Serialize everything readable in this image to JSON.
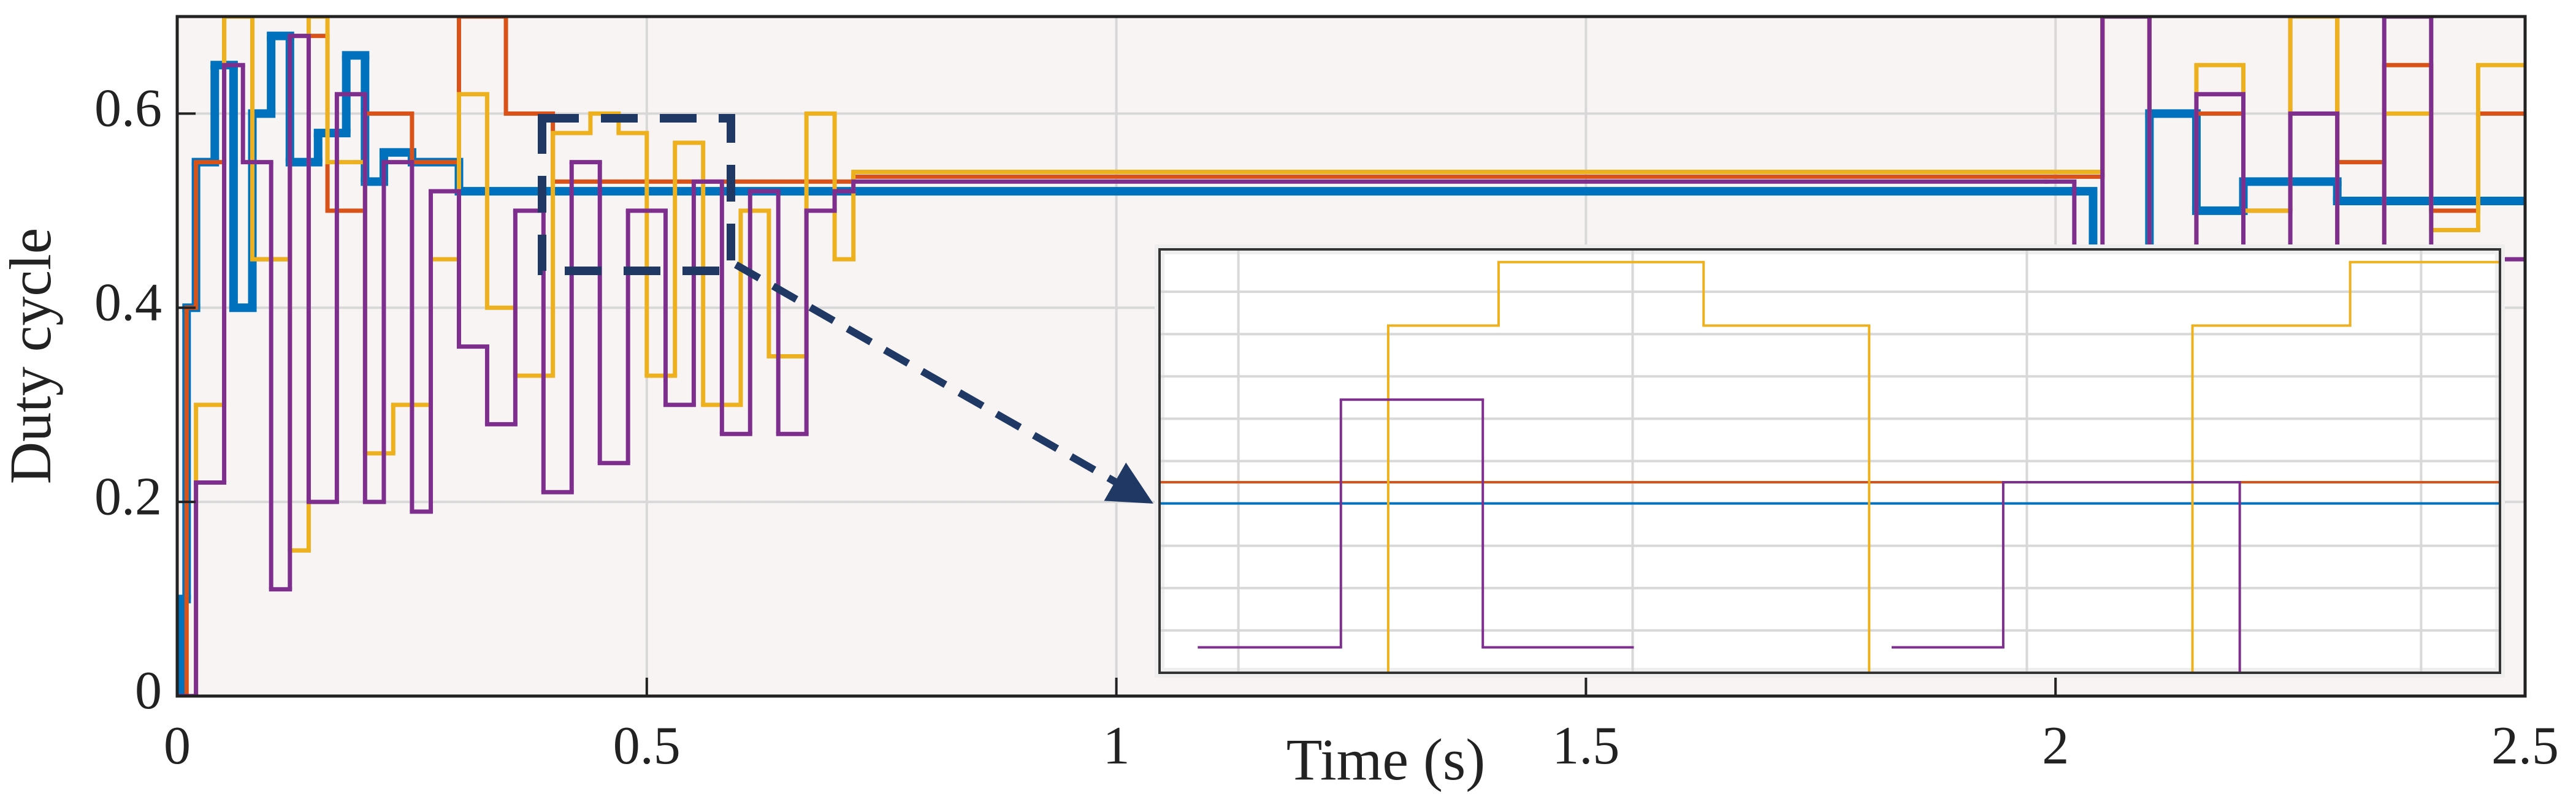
{
  "chart_data": {
    "type": "step",
    "xlabel": "Time (s)",
    "ylabel": "Duty cycle",
    "xlim": [
      0,
      2.5
    ],
    "ylim": [
      0,
      0.7
    ],
    "xticks": [
      0,
      0.5,
      1,
      1.5,
      2,
      2.5
    ],
    "yticks": [
      0,
      0.2,
      0.4,
      0.6
    ],
    "grid": true,
    "series": [
      {
        "color": "#0072bd",
        "x": [
          0,
          0.005,
          0.01,
          0.02,
          0.04,
          0.06,
          0.08,
          0.1,
          0.12,
          0.15,
          0.18,
          0.2,
          0.22,
          0.25,
          0.3,
          2.02,
          2.04,
          2.1,
          2.15,
          2.2,
          2.3,
          2.4,
          2.5
        ],
        "values": [
          0,
          0.1,
          0.4,
          0.55,
          0.65,
          0.4,
          0.6,
          0.68,
          0.55,
          0.58,
          0.66,
          0.53,
          0.56,
          0.55,
          0.52,
          0.52,
          0.45,
          0.6,
          0.5,
          0.53,
          0.51,
          0.51,
          0.51
        ]
      },
      {
        "color": "#d95319",
        "x": [
          0,
          0.01,
          0.02,
          0.05,
          0.08,
          0.12,
          0.16,
          0.2,
          0.25,
          0.3,
          0.35,
          0.4,
          0.72,
          2.0,
          2.05,
          2.1,
          2.15,
          2.2,
          2.25,
          2.3,
          2.35,
          2.4,
          2.45,
          2.5
        ],
        "values": [
          0,
          0.4,
          0.55,
          0.7,
          0.45,
          0.68,
          0.5,
          0.6,
          0.55,
          0.7,
          0.6,
          0.53,
          0.535,
          0.535,
          0.7,
          0.45,
          0.6,
          0.5,
          0.7,
          0.55,
          0.65,
          0.5,
          0.6,
          0.6
        ]
      },
      {
        "color": "#edb120",
        "x": [
          0,
          0.02,
          0.05,
          0.08,
          0.12,
          0.14,
          0.16,
          0.2,
          0.23,
          0.27,
          0.3,
          0.33,
          0.36,
          0.4,
          0.44,
          0.47,
          0.5,
          0.53,
          0.56,
          0.6,
          0.63,
          0.67,
          0.7,
          0.72,
          2.0,
          2.05,
          2.1,
          2.15,
          2.2,
          2.25,
          2.3,
          2.35,
          2.4,
          2.45,
          2.5
        ],
        "values": [
          0,
          0.3,
          0.7,
          0.45,
          0.15,
          0.7,
          0.55,
          0.25,
          0.3,
          0.45,
          0.62,
          0.4,
          0.33,
          0.58,
          0.6,
          0.58,
          0.33,
          0.57,
          0.3,
          0.5,
          0.35,
          0.6,
          0.45,
          0.54,
          0.54,
          0.7,
          0.4,
          0.65,
          0.5,
          0.7,
          0.45,
          0.6,
          0.48,
          0.65,
          0.65
        ]
      },
      {
        "color": "#7e2f8e",
        "x": [
          0,
          0.02,
          0.05,
          0.07,
          0.1,
          0.12,
          0.14,
          0.17,
          0.2,
          0.22,
          0.25,
          0.27,
          0.3,
          0.33,
          0.36,
          0.39,
          0.42,
          0.45,
          0.48,
          0.52,
          0.55,
          0.58,
          0.61,
          0.64,
          0.67,
          0.7,
          0.72,
          1.99,
          2.02,
          2.05,
          2.1,
          2.15,
          2.2,
          2.25,
          2.3,
          2.35,
          2.4,
          2.45,
          2.5
        ],
        "values": [
          0,
          0.22,
          0.65,
          0.55,
          0.11,
          0.68,
          0.2,
          0.62,
          0.2,
          0.55,
          0.19,
          0.52,
          0.36,
          0.28,
          0.5,
          0.21,
          0.55,
          0.24,
          0.5,
          0.3,
          0.53,
          0.27,
          0.52,
          0.27,
          0.5,
          0.52,
          0.53,
          0.53,
          0.3,
          0.7,
          0.4,
          0.62,
          0.3,
          0.6,
          0.45,
          0.7,
          0.35,
          0.45,
          0.45
        ]
      }
    ],
    "inset": {
      "xlim": [
        0.39,
        0.56
      ],
      "ylim": [
        0.44,
        0.64
      ],
      "xticks": [
        0.4,
        0.45,
        0.5,
        0.55
      ],
      "yticks": [
        0.46,
        0.48,
        0.5,
        0.52,
        0.54,
        0.56,
        0.58,
        0.6,
        0.62
      ],
      "series": [
        {
          "color": "#0072bd",
          "x": [
            0.39,
            0.56
          ],
          "values": [
            0.52,
            0.52
          ]
        },
        {
          "color": "#d95319",
          "x": [
            0.39,
            0.56
          ],
          "values": [
            0.53,
            0.53
          ]
        },
        {
          "color": "#edb120",
          "x": [
            0.39,
            0.419,
            0.433,
            0.459,
            0.48,
            0.521,
            0.541,
            0.56
          ],
          "values": [
            0.43,
            0.604,
            0.634,
            0.604,
            0.43,
            0.604,
            0.634,
            0.634
          ]
        },
        {
          "color": "#7e2f8e",
          "x": [
            0.395,
            0.413,
            0.431,
            0.45,
            0.483,
            0.497,
            0.527
          ],
          "values": [
            0.452,
            0.569,
            0.452,
            null,
            0.452,
            0.53,
            0.43
          ]
        }
      ]
    }
  }
}
